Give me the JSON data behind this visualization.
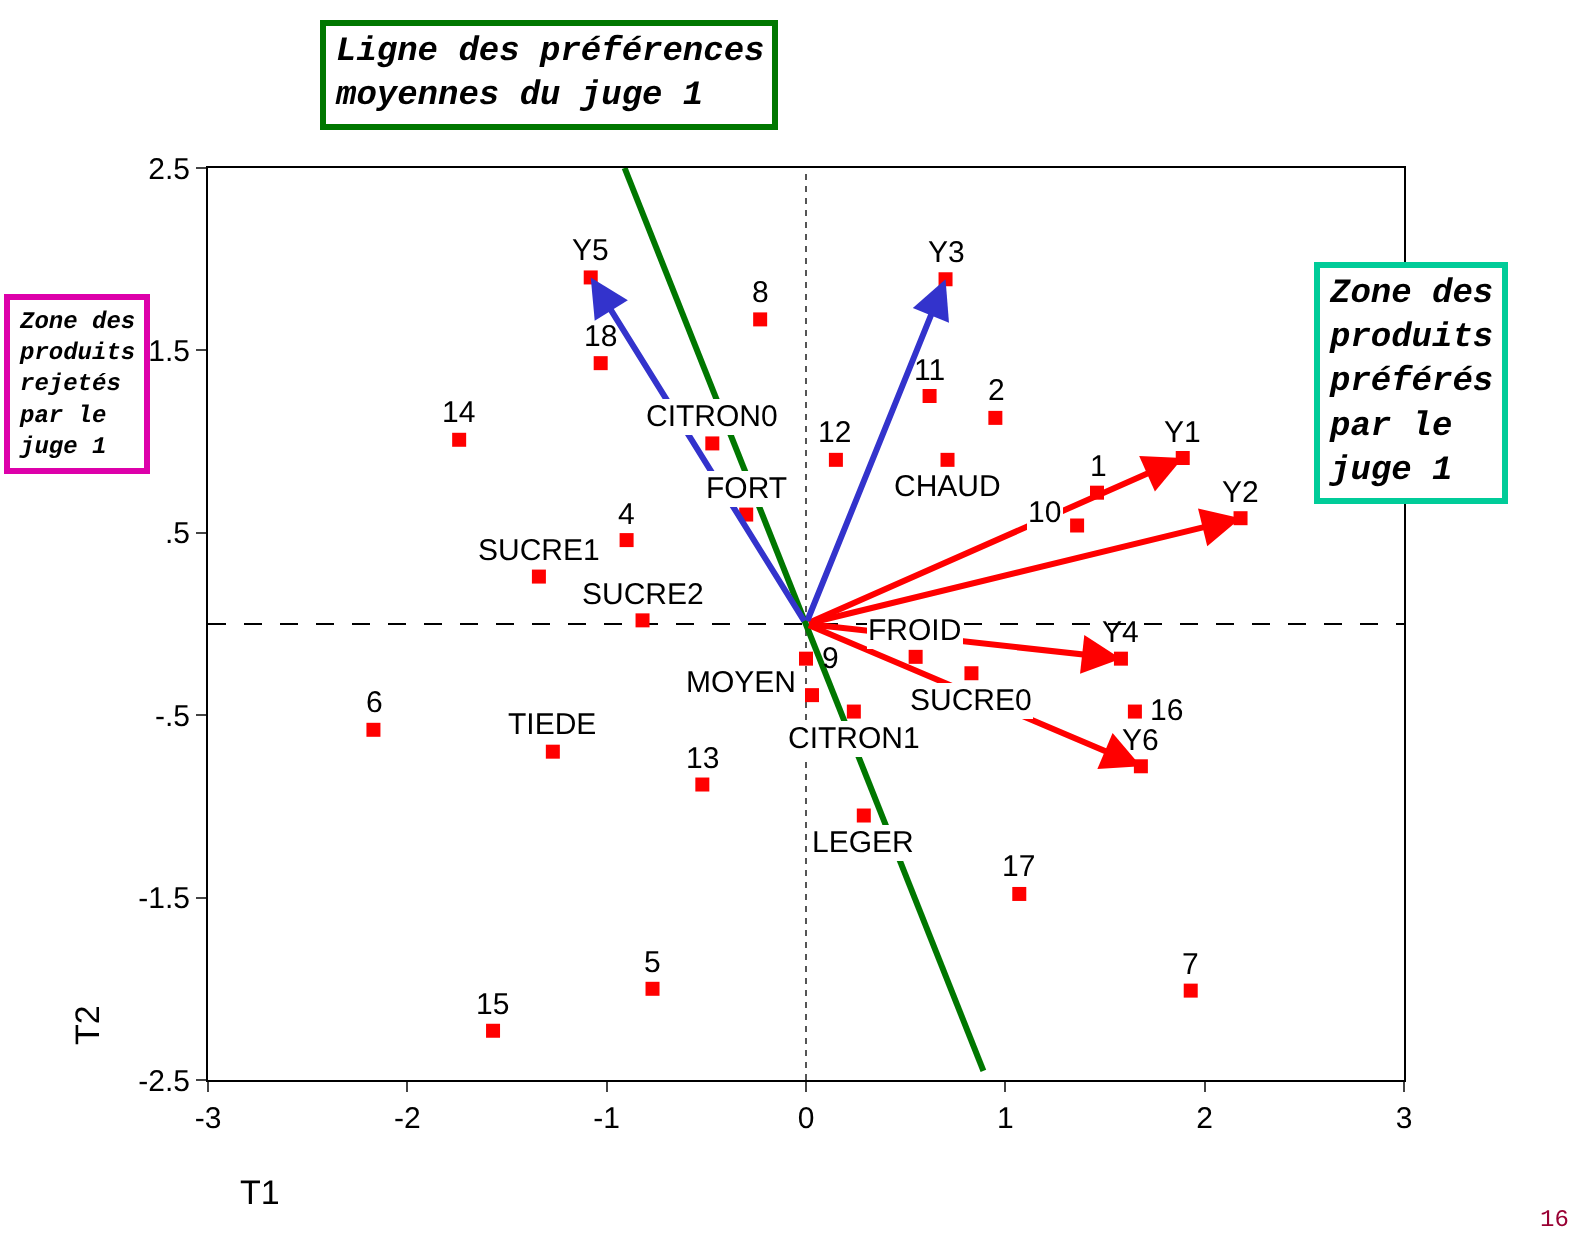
{
  "chart_data": {
    "type": "scatter",
    "xlabel": "T1",
    "ylabel": "T2",
    "xlim": [
      -3,
      3
    ],
    "xticks": [
      -3,
      -2,
      -1,
      0,
      1,
      2,
      3
    ],
    "ylim": [
      -2.5,
      2.5
    ],
    "yticks": [
      {
        "value": 2.5,
        "label": "2.5"
      },
      {
        "value": 1.5,
        "label": "1.5"
      },
      {
        "value": 0.5,
        "label": ".5"
      },
      {
        "value": -0.5,
        "label": "-.5"
      },
      {
        "value": -1.5,
        "label": "-1.5"
      },
      {
        "value": -2.5,
        "label": "-2.5"
      }
    ],
    "grid": false,
    "legend": false,
    "marker": "square",
    "series": [
      {
        "name": "8",
        "color": "#ff0000",
        "x": [
          -0.23
        ],
        "values": [
          1.67
        ]
      },
      {
        "name": "18",
        "color": "#ff0000",
        "x": [
          -1.03
        ],
        "values": [
          1.43
        ]
      },
      {
        "name": "14",
        "color": "#ff0000",
        "x": [
          -1.74
        ],
        "values": [
          1.01
        ]
      },
      {
        "name": "CITRON0",
        "color": "#ff0000",
        "x": [
          -0.47
        ],
        "values": [
          0.99
        ]
      },
      {
        "name": "FORT",
        "color": "#ff0000",
        "x": [
          -0.3
        ],
        "values": [
          0.6
        ]
      },
      {
        "name": "4",
        "color": "#ff0000",
        "x": [
          -0.9
        ],
        "values": [
          0.46
        ]
      },
      {
        "name": "SUCRE1",
        "color": "#ff0000",
        "x": [
          -1.34
        ],
        "values": [
          0.26
        ]
      },
      {
        "name": "SUCRE2",
        "color": "#ff0000",
        "x": [
          -0.82
        ],
        "values": [
          0.02
        ]
      },
      {
        "name": "11",
        "color": "#ff0000",
        "x": [
          0.62
        ],
        "values": [
          1.25
        ]
      },
      {
        "name": "2",
        "color": "#ff0000",
        "x": [
          0.95
        ],
        "values": [
          1.13
        ]
      },
      {
        "name": "12",
        "color": "#ff0000",
        "x": [
          0.15
        ],
        "values": [
          0.9
        ]
      },
      {
        "name": "CHAUD",
        "color": "#ff0000",
        "x": [
          0.71
        ],
        "values": [
          0.9
        ]
      },
      {
        "name": "1",
        "color": "#ff0000",
        "x": [
          1.46
        ],
        "values": [
          0.72
        ]
      },
      {
        "name": "10",
        "color": "#ff0000",
        "x": [
          1.36
        ],
        "values": [
          0.54
        ]
      },
      {
        "name": "FROID",
        "color": "#ff0000",
        "x": [
          0.55
        ],
        "values": [
          -0.18
        ]
      },
      {
        "name": "9",
        "color": "#ff0000",
        "x": [
          0.0
        ],
        "values": [
          -0.19
        ]
      },
      {
        "name": "MOYEN",
        "color": "#ff0000",
        "x": [
          0.03
        ],
        "values": [
          -0.39
        ]
      },
      {
        "name": "SUCRE0",
        "color": "#ff0000",
        "x": [
          0.83
        ],
        "values": [
          -0.27
        ]
      },
      {
        "name": "CITRON1",
        "color": "#ff0000",
        "x": [
          0.24
        ],
        "values": [
          -0.48
        ]
      },
      {
        "name": "16",
        "color": "#ff0000",
        "x": [
          1.65
        ],
        "values": [
          -0.48
        ]
      },
      {
        "name": "LEGER",
        "color": "#ff0000",
        "x": [
          0.29
        ],
        "values": [
          -1.05
        ]
      },
      {
        "name": "17",
        "color": "#ff0000",
        "x": [
          1.07
        ],
        "values": [
          -1.48
        ]
      },
      {
        "name": "7",
        "color": "#ff0000",
        "x": [
          1.93
        ],
        "values": [
          -2.01
        ]
      },
      {
        "name": "6",
        "color": "#ff0000",
        "x": [
          -2.17
        ],
        "values": [
          -0.58
        ]
      },
      {
        "name": "TIEDE",
        "color": "#ff0000",
        "x": [
          -1.27
        ],
        "values": [
          -0.7
        ]
      },
      {
        "name": "13",
        "color": "#ff0000",
        "x": [
          -0.52
        ],
        "values": [
          -0.88
        ]
      },
      {
        "name": "5",
        "color": "#ff0000",
        "x": [
          -0.77
        ],
        "values": [
          -2.0
        ]
      },
      {
        "name": "15",
        "color": "#ff0000",
        "x": [
          -1.57
        ],
        "values": [
          -2.23
        ]
      },
      {
        "color": "#ff0000",
        "x": [
          1.89,
          2.18,
          0.7,
          1.58,
          -1.08,
          1.68
        ],
        "values": [
          0.91,
          0.58,
          1.89,
          -0.19,
          1.9,
          -0.78
        ]
      },
      {
        "type": "line",
        "color": "#007700",
        "marker": "none",
        "x": [
          -0.91,
          0.89
        ],
        "values": [
          2.5,
          -2.45
        ]
      }
    ],
    "ref_lines": [
      {
        "axis": "x",
        "value": 0,
        "line_style": "dotted",
        "color": "#555555"
      },
      {
        "axis": "y",
        "value": 0,
        "line_style": "dashed",
        "color": "#000000"
      }
    ],
    "annotations": [
      "Ligne des préférences\nmoyennes du juge 1",
      "Zone des\nproduits\nrejetés\npar le\njuge 1",
      "Zone des\nproduits\npréférés\npar le\njuge 1",
      "16",
      {
        "text": "Y1",
        "x": 1.89,
        "y": 0.91
      },
      {
        "text": "Y2",
        "x": 2.18,
        "y": 0.58
      },
      {
        "text": "Y3",
        "x": 0.7,
        "y": 1.89
      },
      {
        "text": "Y4",
        "x": 1.58,
        "y": -0.19
      },
      {
        "text": "Y5",
        "x": -1.08,
        "y": 1.9
      },
      {
        "text": "Y6",
        "x": 1.68,
        "y": -0.78
      }
    ]
  }
}
